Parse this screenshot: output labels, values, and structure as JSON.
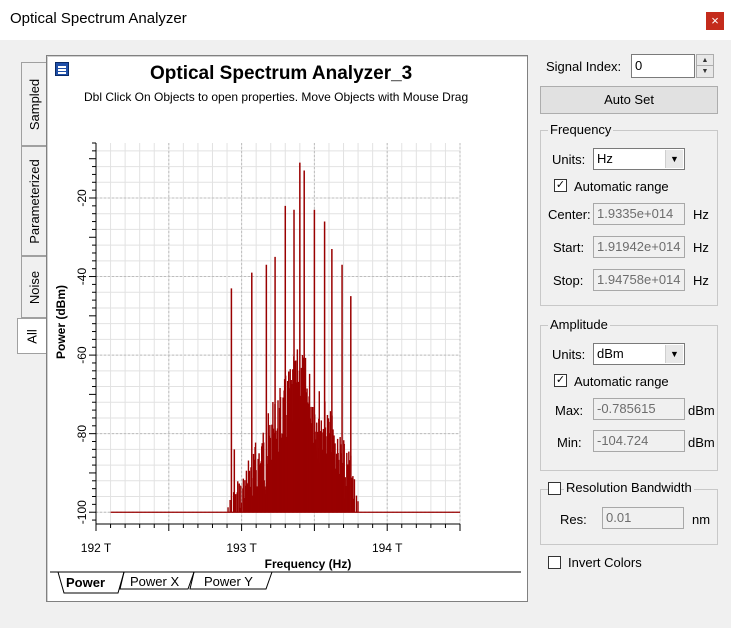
{
  "window": {
    "title": "Optical Spectrum Analyzer",
    "close_glyph": "×"
  },
  "side_tabs": [
    {
      "label": "Sampled"
    },
    {
      "label": "Parameterized"
    },
    {
      "label": "Noise"
    },
    {
      "label": "All"
    }
  ],
  "plot": {
    "title": "Optical Spectrum Analyzer_3",
    "subtitle": "Dbl Click On Objects to open properties.  Move Objects with Mouse Drag"
  },
  "bottom_tabs": [
    {
      "label": "Power"
    },
    {
      "label": "Power X"
    },
    {
      "label": "Power Y"
    }
  ],
  "chart_data": {
    "type": "line",
    "xlabel": "Frequency (Hz)",
    "ylabel": "Power (dBm)",
    "xlim": [
      192.0,
      194.5
    ],
    "ylim": [
      -103,
      -6
    ],
    "x_ticks": [
      "192 T",
      "193 T",
      "194 T"
    ],
    "y_ticks": [
      "-20",
      "-40",
      "-60",
      "-80",
      "-100"
    ],
    "grid": true,
    "color": "#990000",
    "baseline": -100,
    "x_unit_scale": "THz",
    "peaks": [
      {
        "x": 192.93,
        "y": -43
      },
      {
        "x": 192.95,
        "y": -84
      },
      {
        "x": 193.07,
        "y": -39
      },
      {
        "x": 193.12,
        "y": -85
      },
      {
        "x": 193.17,
        "y": -37
      },
      {
        "x": 193.23,
        "y": -35
      },
      {
        "x": 193.3,
        "y": -22
      },
      {
        "x": 193.32,
        "y": -68
      },
      {
        "x": 193.36,
        "y": -23
      },
      {
        "x": 193.4,
        "y": -11
      },
      {
        "x": 193.43,
        "y": -13
      },
      {
        "x": 193.5,
        "y": -23
      },
      {
        "x": 193.57,
        "y": -26
      },
      {
        "x": 193.62,
        "y": -33
      },
      {
        "x": 193.69,
        "y": -37
      },
      {
        "x": 193.75,
        "y": -45
      }
    ],
    "envelope_center": 193.4,
    "envelope_peak": -57
  },
  "signal_index": {
    "label": "Signal Index:",
    "value": "0"
  },
  "autoset": {
    "label": "Auto Set"
  },
  "frequency": {
    "title": "Frequency",
    "units_label": "Units:",
    "units_value": "Hz",
    "auto_range_label": "Automatic range",
    "auto_range_checked": "✓",
    "center_label": "Center:",
    "center_value": "1.9335e+014",
    "start_label": "Start:",
    "start_value": "1.91942e+014",
    "stop_label": "Stop:",
    "stop_value": "1.94758e+014",
    "unit": "Hz"
  },
  "amplitude": {
    "title": "Amplitude",
    "units_label": "Units:",
    "units_value": "dBm",
    "auto_range_label": "Automatic range",
    "auto_range_checked": "✓",
    "max_label": "Max:",
    "max_value": "-0.785615",
    "min_label": "Min:",
    "min_value": "-104.724",
    "unit": "dBm"
  },
  "resolution": {
    "title": "Resolution Bandwidth",
    "res_label": "Res:",
    "res_value": "0.01",
    "unit": "nm"
  },
  "invert_colors": {
    "label": "Invert Colors"
  },
  "icons": {
    "dropdown": "▼",
    "spin_up": "▲",
    "spin_down": "▼"
  }
}
